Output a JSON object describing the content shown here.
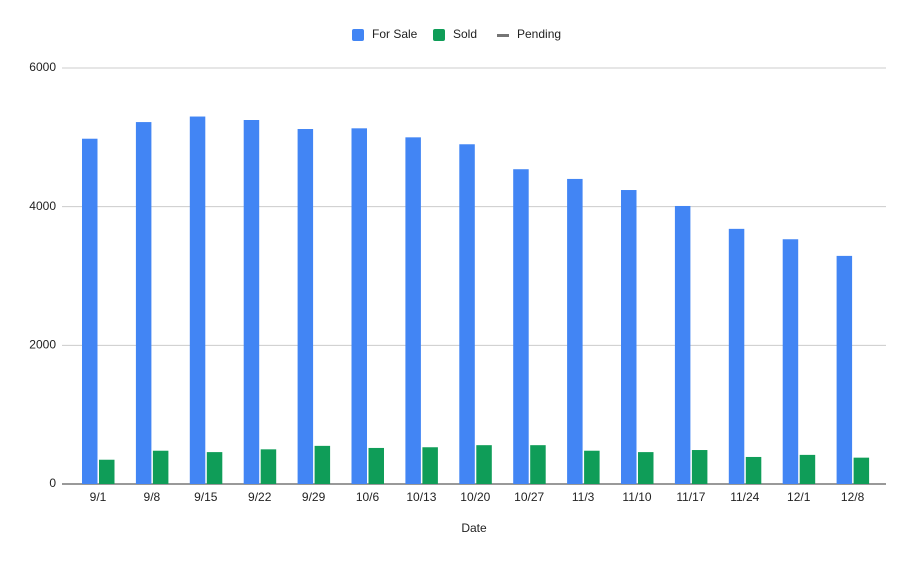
{
  "chart_data": {
    "type": "bar",
    "x_label": "Date",
    "categories": [
      "9/1",
      "9/8",
      "9/15",
      "9/22",
      "9/29",
      "10/6",
      "10/13",
      "10/20",
      "10/27",
      "11/3",
      "11/10",
      "11/17",
      "11/24",
      "12/1",
      "12/8"
    ],
    "series": [
      {
        "name": "For Sale",
        "color": "#4285f4",
        "values": [
          4980,
          5220,
          5300,
          5250,
          5120,
          5130,
          5000,
          4900,
          4540,
          4400,
          4240,
          4010,
          3680,
          3530,
          3290
        ]
      },
      {
        "name": "Sold",
        "color": "#0f9d58",
        "values": [
          350,
          480,
          460,
          500,
          550,
          520,
          530,
          560,
          560,
          480,
          460,
          490,
          390,
          420,
          380
        ]
      },
      {
        "name": "Pending",
        "color": "#757575",
        "type": "line",
        "values": [
          null,
          null,
          null,
          null,
          null,
          null,
          null,
          null,
          null,
          null,
          null,
          null,
          null,
          null,
          null
        ]
      }
    ],
    "ylim": [
      0,
      6000
    ],
    "yticks": [
      0,
      2000,
      4000,
      6000
    ],
    "grid": true,
    "legend": "top"
  }
}
